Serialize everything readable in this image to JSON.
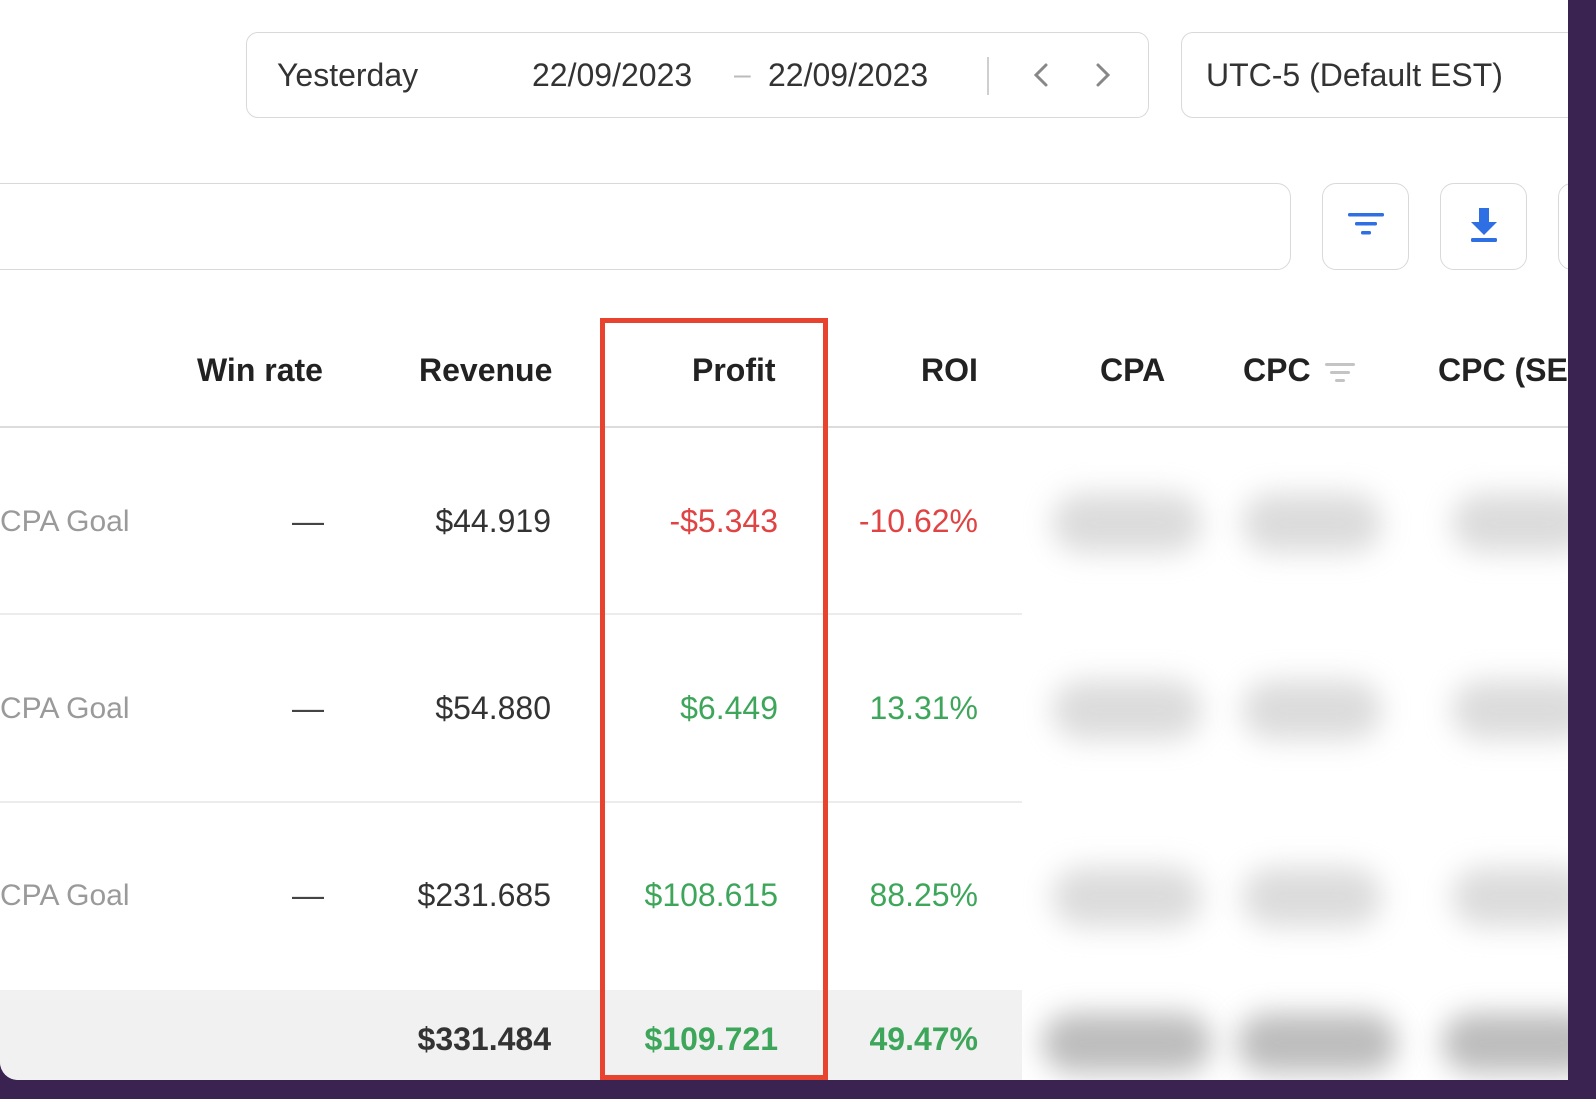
{
  "date_range": {
    "preset": "Yesterday",
    "start": "22/09/2023",
    "separator": "–",
    "end": "22/09/2023"
  },
  "timezone": "UTC-5 (Default EST)",
  "icons": {
    "prev": "chevron-left-icon",
    "next": "chevron-right-icon",
    "filter": "filter-icon",
    "download": "download-icon",
    "sort": "sort-icon"
  },
  "colors": {
    "negative": "#e04343",
    "positive": "#3ea65b",
    "accent": "#2f6fe4",
    "highlight": "#e8432f"
  },
  "table": {
    "columns": [
      "Win rate",
      "Revenue",
      "Profit",
      "ROI",
      "CPA",
      "CPC",
      "CPC (SE"
    ],
    "rows": [
      {
        "goal": "CPA Goal",
        "win_rate": "—",
        "revenue": "$44.919",
        "profit": "-$5.343",
        "roi": "-10.62%"
      },
      {
        "goal": "CPA Goal",
        "win_rate": "—",
        "revenue": "$54.880",
        "profit": "$6.449",
        "roi": "13.31%"
      },
      {
        "goal": "CPA Goal",
        "win_rate": "—",
        "revenue": "$231.685",
        "profit": "$108.615",
        "roi": "88.25%"
      }
    ],
    "total": {
      "revenue": "$331.484",
      "profit": "$109.721",
      "roi": "49.47%"
    }
  }
}
